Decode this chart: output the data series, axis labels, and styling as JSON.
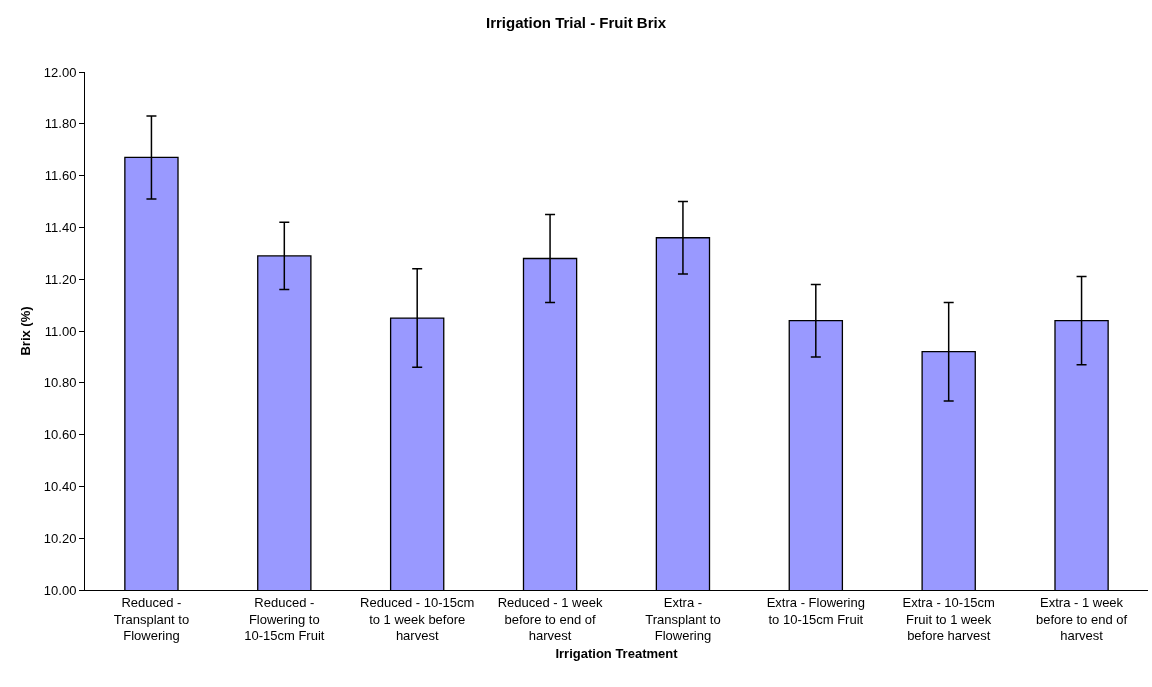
{
  "chart_data": {
    "type": "bar",
    "title": "Irrigation Trial - Fruit Brix",
    "xlabel": "Irrigation Treatment",
    "ylabel": "Brix (%)",
    "categories": [
      "Reduced - Transplant to Flowering",
      "Reduced - Flowering to 10-15cm Fruit",
      "Reduced - 10-15cm to 1 week before harvest",
      "Reduced - 1 week before to end of harvest",
      "Extra - Transplant to Flowering",
      "Extra - Flowering to 10-15cm Fruit",
      "Extra - 10-15cm Fruit to 1 week before harvest",
      "Extra - 1 week before to end of harvest"
    ],
    "values": [
      11.67,
      11.29,
      11.05,
      11.28,
      11.36,
      11.04,
      10.92,
      11.04
    ],
    "errors": [
      0.16,
      0.13,
      0.19,
      0.17,
      0.14,
      0.14,
      0.19,
      0.17
    ],
    "color": "#9999ff",
    "ylim": [
      10,
      12
    ],
    "yticks": [
      {
        "value": 10,
        "label": "10.00"
      },
      {
        "value": 10.2,
        "label": "10.20"
      },
      {
        "value": 10.4,
        "label": "10.40"
      },
      {
        "value": 10.6,
        "label": "10.60"
      },
      {
        "value": 10.8,
        "label": "10.80"
      },
      {
        "value": 11,
        "label": "11.00"
      },
      {
        "value": 11.2,
        "label": "11.20"
      },
      {
        "value": 11.4,
        "label": "11.40"
      },
      {
        "value": 11.6,
        "label": "11.60"
      },
      {
        "value": 11.8,
        "label": "11.80"
      },
      {
        "value": 12,
        "label": "12.00"
      }
    ],
    "grid": false,
    "legend": false
  }
}
